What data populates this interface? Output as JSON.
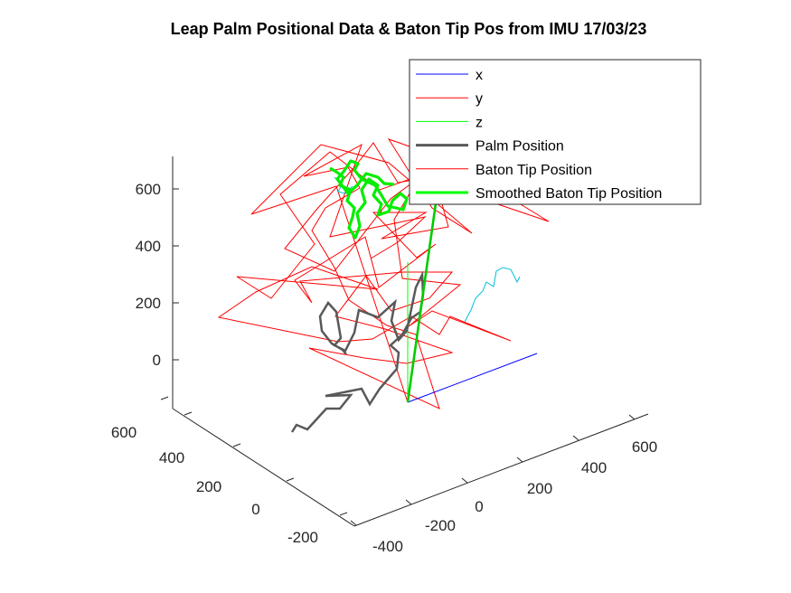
{
  "chart_data": {
    "type": "line3d",
    "title": "Leap Palm Positional Data & Baton Tip Pos from IMU 17/03/23",
    "xlabel": "",
    "ylabel": "",
    "zlabel": "",
    "grid": false,
    "legend_position": "top-right",
    "x_ticks": [
      "-400",
      "-200",
      "0",
      "200",
      "400",
      "600"
    ],
    "y_ticks": [
      "-200",
      "0",
      "200",
      "400",
      "600"
    ],
    "z_ticks": [
      "0",
      "200",
      "400",
      "600"
    ],
    "series": [
      {
        "name": "x",
        "color": "#0000ff",
        "style": "thin"
      },
      {
        "name": "y",
        "color": "#ff0000",
        "style": "thin"
      },
      {
        "name": "z",
        "color": "#00ff00",
        "style": "thin"
      },
      {
        "name": "Palm Position",
        "color": "#595959",
        "style": "thick"
      },
      {
        "name": "Baton Tip Position",
        "color": "#ff0000",
        "style": "thin"
      },
      {
        "name": "Smoothed Baton Tip Position",
        "color": "#00ff00",
        "style": "thick"
      }
    ]
  }
}
